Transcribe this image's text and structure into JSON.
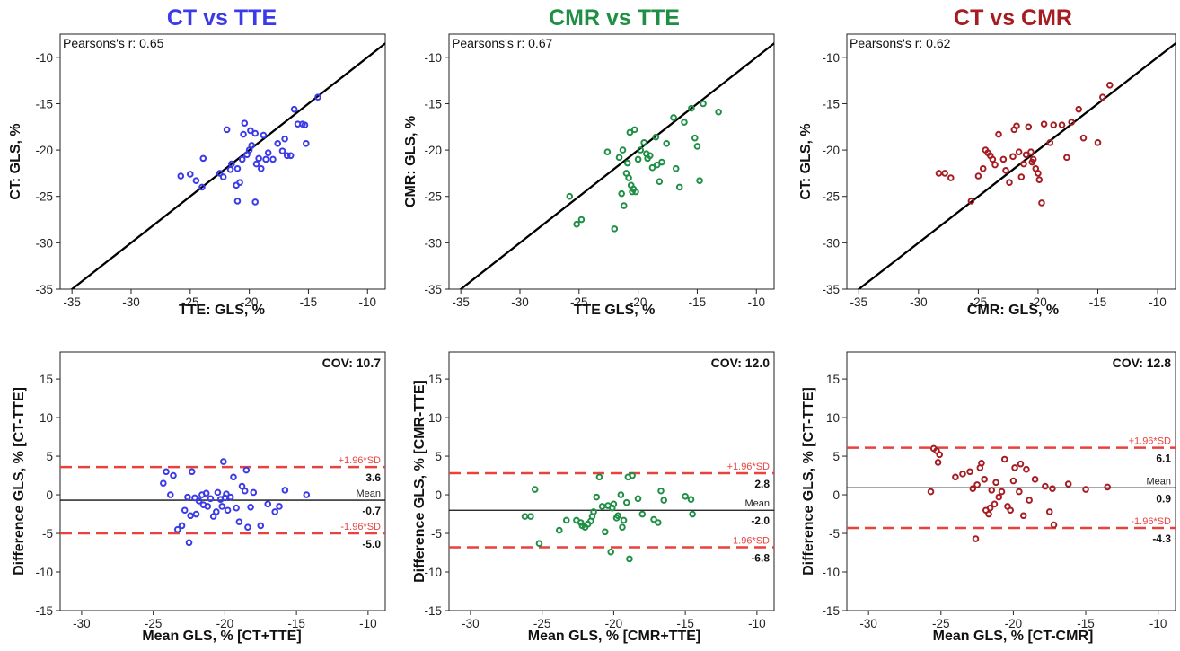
{
  "chart_data": [
    {
      "type": "scatter",
      "panel": "top-left",
      "title": "CT vs TTE",
      "title_color": "#3a3ae8",
      "xlabel": "TTE: GLS, %",
      "ylabel": "CT: GLS, %",
      "xlim": [
        -36,
        -8.5
      ],
      "ylim": [
        -35,
        -7.5
      ],
      "xticks": [
        -35,
        -30,
        -25,
        -20,
        -15,
        -10
      ],
      "yticks": [
        -35,
        -30,
        -25,
        -20,
        -15,
        -10
      ],
      "annotation": "Pearsons's r: 0.65",
      "identity_line": true,
      "marker_color": "#3a3ae8",
      "points": [
        [
          -25.8,
          -22.8
        ],
        [
          -25.0,
          -22.6
        ],
        [
          -24.5,
          -23.3
        ],
        [
          -24.0,
          -24.0
        ],
        [
          -23.9,
          -20.9
        ],
        [
          -22.5,
          -22.5
        ],
        [
          -22.2,
          -22.9
        ],
        [
          -21.9,
          -17.8
        ],
        [
          -21.6,
          -22.1
        ],
        [
          -21.5,
          -21.5
        ],
        [
          -21.1,
          -23.8
        ],
        [
          -21.0,
          -22.0
        ],
        [
          -21.0,
          -25.5
        ],
        [
          -20.8,
          -23.5
        ],
        [
          -20.6,
          -21.0
        ],
        [
          -20.5,
          -18.3
        ],
        [
          -20.4,
          -17.1
        ],
        [
          -20.2,
          -20.5
        ],
        [
          -20.0,
          -20.0
        ],
        [
          -19.9,
          -17.9
        ],
        [
          -19.8,
          -19.5
        ],
        [
          -19.5,
          -18.2
        ],
        [
          -19.5,
          -25.6
        ],
        [
          -19.4,
          -21.5
        ],
        [
          -19.2,
          -20.9
        ],
        [
          -19.0,
          -22.0
        ],
        [
          -18.8,
          -18.4
        ],
        [
          -18.6,
          -21.0
        ],
        [
          -18.4,
          -20.3
        ],
        [
          -18.0,
          -21.0
        ],
        [
          -17.6,
          -19.3
        ],
        [
          -17.2,
          -20.1
        ],
        [
          -17.0,
          -18.8
        ],
        [
          -16.8,
          -20.6
        ],
        [
          -16.5,
          -20.6
        ],
        [
          -16.2,
          -15.6
        ],
        [
          -15.9,
          -17.2
        ],
        [
          -15.5,
          -17.2
        ],
        [
          -15.3,
          -17.3
        ],
        [
          -15.2,
          -19.3
        ],
        [
          -14.2,
          -14.3
        ]
      ]
    },
    {
      "type": "scatter",
      "panel": "top-middle",
      "title": "CMR vs TTE",
      "title_color": "#1e8f45",
      "xlabel": "TTE GLS, %",
      "ylabel": "CMR: GLS, %",
      "xlim": [
        -36,
        -8.5
      ],
      "ylim": [
        -35,
        -7.5
      ],
      "xticks": [
        -35,
        -30,
        -25,
        -20,
        -15,
        -10
      ],
      "yticks": [
        -35,
        -30,
        -25,
        -20,
        -15,
        -10
      ],
      "annotation": "Pearsons's r: 0.67",
      "identity_line": true,
      "marker_color": "#1e8f45",
      "points": [
        [
          -25.8,
          -25.0
        ],
        [
          -25.2,
          -28.0
        ],
        [
          -24.8,
          -27.5
        ],
        [
          -22.6,
          -20.2
        ],
        [
          -22.0,
          -28.5
        ],
        [
          -21.6,
          -20.8
        ],
        [
          -21.4,
          -24.7
        ],
        [
          -21.3,
          -20.0
        ],
        [
          -21.2,
          -26.0
        ],
        [
          -21.0,
          -22.5
        ],
        [
          -20.9,
          -21.4
        ],
        [
          -20.8,
          -23.0
        ],
        [
          -20.7,
          -18.1
        ],
        [
          -20.6,
          -23.8
        ],
        [
          -20.5,
          -24.5
        ],
        [
          -20.4,
          -24.2
        ],
        [
          -20.3,
          -17.8
        ],
        [
          -20.2,
          -24.5
        ],
        [
          -20.0,
          -21.0
        ],
        [
          -19.8,
          -20.0
        ],
        [
          -19.5,
          -19.2
        ],
        [
          -19.3,
          -20.4
        ],
        [
          -19.2,
          -20.9
        ],
        [
          -19.0,
          -20.6
        ],
        [
          -18.8,
          -21.9
        ],
        [
          -18.5,
          -18.6
        ],
        [
          -18.4,
          -21.6
        ],
        [
          -18.2,
          -23.4
        ],
        [
          -18.0,
          -21.3
        ],
        [
          -17.6,
          -19.3
        ],
        [
          -17.0,
          -16.5
        ],
        [
          -16.8,
          -22.0
        ],
        [
          -16.5,
          -24.0
        ],
        [
          -16.1,
          -17.0
        ],
        [
          -15.5,
          -15.5
        ],
        [
          -15.2,
          -18.7
        ],
        [
          -15.0,
          -19.6
        ],
        [
          -14.8,
          -23.3
        ],
        [
          -14.5,
          -15.0
        ],
        [
          -13.2,
          -15.9
        ]
      ]
    },
    {
      "type": "scatter",
      "panel": "top-right",
      "title": "CT vs CMR",
      "title_color": "#a51d23",
      "xlabel": "CMR: GLS, %",
      "ylabel": "CT: GLS, %",
      "xlim": [
        -36,
        -8.5
      ],
      "ylim": [
        -35,
        -7.5
      ],
      "xticks": [
        -35,
        -30,
        -25,
        -20,
        -15,
        -10
      ],
      "yticks": [
        -35,
        -30,
        -25,
        -20,
        -15,
        -10
      ],
      "annotation": "Pearsons's r: 0.62",
      "identity_line": true,
      "marker_color": "#a51d23",
      "points": [
        [
          -28.3,
          -22.5
        ],
        [
          -27.8,
          -22.5
        ],
        [
          -27.3,
          -23.0
        ],
        [
          -25.6,
          -25.5
        ],
        [
          -25.0,
          -22.8
        ],
        [
          -24.6,
          -22.0
        ],
        [
          -24.4,
          -20.0
        ],
        [
          -24.2,
          -20.3
        ],
        [
          -24.0,
          -20.6
        ],
        [
          -23.8,
          -21.0
        ],
        [
          -23.6,
          -21.6
        ],
        [
          -23.3,
          -18.3
        ],
        [
          -22.9,
          -21.0
        ],
        [
          -22.7,
          -22.2
        ],
        [
          -22.4,
          -23.5
        ],
        [
          -22.1,
          -20.7
        ],
        [
          -22.0,
          -17.8
        ],
        [
          -21.8,
          -17.4
        ],
        [
          -21.6,
          -20.2
        ],
        [
          -21.4,
          -22.9
        ],
        [
          -21.2,
          -21.5
        ],
        [
          -21.0,
          -20.5
        ],
        [
          -20.8,
          -17.5
        ],
        [
          -20.6,
          -20.2
        ],
        [
          -20.5,
          -21.3
        ],
        [
          -20.4,
          -21.0
        ],
        [
          -20.2,
          -22.0
        ],
        [
          -20.0,
          -22.5
        ],
        [
          -19.9,
          -23.2
        ],
        [
          -19.7,
          -25.7
        ],
        [
          -19.5,
          -17.2
        ],
        [
          -19.0,
          -19.2
        ],
        [
          -18.7,
          -17.3
        ],
        [
          -18.0,
          -17.3
        ],
        [
          -17.6,
          -20.8
        ],
        [
          -17.2,
          -17.0
        ],
        [
          -16.6,
          -15.6
        ],
        [
          -16.2,
          -18.7
        ],
        [
          -15.0,
          -19.2
        ],
        [
          -14.6,
          -14.3
        ],
        [
          -14.0,
          -13.0
        ]
      ]
    },
    {
      "type": "scatter",
      "panel": "bottom-left",
      "xlabel": "Mean GLS, % [CT+TTE]",
      "ylabel": "Difference GLS, % [CT-TTE]",
      "xlim": [
        -31.5,
        -8.8
      ],
      "ylim": [
        -15,
        18.5
      ],
      "xticks": [
        -30,
        -25,
        -20,
        -15,
        -10
      ],
      "yticks": [
        -15,
        -10,
        -5,
        0,
        5,
        10,
        15
      ],
      "cov_label": "COV: 10.7",
      "mean": -0.7,
      "upper_loa": 3.6,
      "lower_loa": -5.0,
      "mean_label": "Mean",
      "upper_label": "+1.96*SD",
      "lower_label": "-1.96*SD",
      "mean_text": "-0.7",
      "upper_text": "3.6",
      "lower_text": "-5.0",
      "marker_color": "#3a3ae8",
      "points": [
        [
          -24.1,
          3.0
        ],
        [
          -23.6,
          2.5
        ],
        [
          -23.8,
          0.0
        ],
        [
          -23.3,
          -4.5
        ],
        [
          -23.0,
          -4.0
        ],
        [
          -22.6,
          -0.3
        ],
        [
          -22.5,
          -6.2
        ],
        [
          -22.4,
          -2.7
        ],
        [
          -22.3,
          3.0
        ],
        [
          -22.1,
          -0.4
        ],
        [
          -22.0,
          -2.5
        ],
        [
          -21.8,
          -0.8
        ],
        [
          -21.5,
          -1.3
        ],
        [
          -21.3,
          0.2
        ],
        [
          -21.2,
          -1.5
        ],
        [
          -21.0,
          -0.5
        ],
        [
          -20.8,
          -2.8
        ],
        [
          -20.6,
          -2.2
        ],
        [
          -20.5,
          0.3
        ],
        [
          -20.3,
          -0.6
        ],
        [
          -20.2,
          -1.5
        ],
        [
          -20.1,
          4.3
        ],
        [
          -20.0,
          -0.4
        ],
        [
          -19.8,
          -2.0
        ],
        [
          -19.6,
          -0.3
        ],
        [
          -19.4,
          2.3
        ],
        [
          -19.2,
          -1.7
        ],
        [
          -19.0,
          -3.5
        ],
        [
          -18.8,
          1.1
        ],
        [
          -18.6,
          0.5
        ],
        [
          -18.5,
          3.2
        ],
        [
          -18.4,
          -4.2
        ],
        [
          -18.2,
          -1.6
        ],
        [
          -18.0,
          0.3
        ],
        [
          -17.5,
          -4.0
        ],
        [
          -17.0,
          -1.2
        ],
        [
          -16.5,
          -2.2
        ],
        [
          -16.2,
          -1.5
        ],
        [
          -15.8,
          0.6
        ],
        [
          -14.3,
          0.0
        ],
        [
          -24.3,
          1.5
        ],
        [
          -19.9,
          0.1
        ],
        [
          -21.6,
          0.0
        ],
        [
          -22.8,
          -2.0
        ]
      ]
    },
    {
      "type": "scatter",
      "panel": "bottom-middle",
      "xlabel": "Mean GLS, % [CMR+TTE]",
      "ylabel": "Difference GLS, % [CMR-TTE]",
      "xlim": [
        -31.5,
        -8.8
      ],
      "ylim": [
        -15,
        18.5
      ],
      "xticks": [
        -30,
        -25,
        -20,
        -15,
        -10
      ],
      "yticks": [
        -15,
        -10,
        -5,
        0,
        5,
        10,
        15
      ],
      "cov_label": "COV: 12.0",
      "mean": -2.0,
      "upper_loa": 2.8,
      "lower_loa": -6.8,
      "mean_label": "Mean",
      "upper_label": "+1.96*SD",
      "lower_label": "-1.96*SD",
      "mean_text": "-2.0",
      "upper_text": "2.8",
      "lower_text": "-6.8",
      "marker_color": "#1e8f45",
      "points": [
        [
          -26.2,
          -2.8
        ],
        [
          -25.8,
          -2.8
        ],
        [
          -25.5,
          0.7
        ],
        [
          -25.2,
          -6.3
        ],
        [
          -23.8,
          -4.6
        ],
        [
          -23.3,
          -3.3
        ],
        [
          -22.6,
          -3.3
        ],
        [
          -22.3,
          -3.6
        ],
        [
          -22.2,
          -4.0
        ],
        [
          -22.0,
          -4.2
        ],
        [
          -21.8,
          -3.8
        ],
        [
          -21.6,
          -3.4
        ],
        [
          -21.5,
          -2.8
        ],
        [
          -21.4,
          -2.2
        ],
        [
          -21.2,
          -0.3
        ],
        [
          -21.0,
          2.3
        ],
        [
          -20.8,
          -1.5
        ],
        [
          -20.6,
          -4.8
        ],
        [
          -20.4,
          -1.4
        ],
        [
          -20.2,
          -7.4
        ],
        [
          -20.1,
          -1.7
        ],
        [
          -20.0,
          -1.2
        ],
        [
          -19.8,
          -3.0
        ],
        [
          -19.7,
          -2.7
        ],
        [
          -19.5,
          0.0
        ],
        [
          -19.4,
          -4.2
        ],
        [
          -19.3,
          -3.3
        ],
        [
          -19.1,
          -1.0
        ],
        [
          -19.0,
          2.3
        ],
        [
          -18.9,
          -8.3
        ],
        [
          -18.7,
          2.5
        ],
        [
          -18.3,
          -0.5
        ],
        [
          -18.0,
          -2.5
        ],
        [
          -17.2,
          -3.2
        ],
        [
          -16.9,
          -3.6
        ],
        [
          -16.7,
          0.5
        ],
        [
          -16.5,
          -0.7
        ],
        [
          -15.0,
          -0.2
        ],
        [
          -14.6,
          -0.6
        ],
        [
          -14.5,
          -2.5
        ]
      ]
    },
    {
      "type": "scatter",
      "panel": "bottom-right",
      "xlabel": "Mean GLS, % [CT-CMR]",
      "ylabel": "Difference GLS, % [CT-TTE]",
      "xlim": [
        -31.5,
        -8.8
      ],
      "ylim": [
        -15,
        18.5
      ],
      "xticks": [
        -30,
        -25,
        -20,
        -15,
        -10
      ],
      "yticks": [
        -15,
        -10,
        -5,
        0,
        5,
        10,
        15
      ],
      "cov_label": "COV: 12.8",
      "mean": 0.9,
      "upper_loa": 6.1,
      "lower_loa": -4.3,
      "mean_label": "Mean",
      "upper_label": "+1.96*SD",
      "lower_label": "-1.96*SD",
      "mean_text": "0.9",
      "upper_text": "6.1",
      "lower_text": "-4.3",
      "marker_color": "#a51d23",
      "points": [
        [
          -25.7,
          0.4
        ],
        [
          -25.5,
          6.0
        ],
        [
          -25.3,
          5.7
        ],
        [
          -25.1,
          5.2
        ],
        [
          -25.2,
          4.2
        ],
        [
          -24.0,
          2.3
        ],
        [
          -23.5,
          2.7
        ],
        [
          -23.0,
          3.0
        ],
        [
          -22.8,
          0.8
        ],
        [
          -22.6,
          -5.7
        ],
        [
          -22.5,
          1.3
        ],
        [
          -22.3,
          3.5
        ],
        [
          -22.2,
          4.1
        ],
        [
          -22.0,
          2.0
        ],
        [
          -21.9,
          -2.0
        ],
        [
          -21.7,
          -2.5
        ],
        [
          -21.6,
          -1.7
        ],
        [
          -21.5,
          0.6
        ],
        [
          -21.3,
          -1.2
        ],
        [
          -21.2,
          1.6
        ],
        [
          -21.0,
          -0.3
        ],
        [
          -20.8,
          0.4
        ],
        [
          -20.6,
          4.6
        ],
        [
          -20.4,
          -1.5
        ],
        [
          -20.2,
          -2.0
        ],
        [
          -20.0,
          1.8
        ],
        [
          -19.9,
          3.5
        ],
        [
          -19.6,
          0.4
        ],
        [
          -19.5,
          4.0
        ],
        [
          -19.3,
          -2.7
        ],
        [
          -19.1,
          3.3
        ],
        [
          -18.9,
          -0.7
        ],
        [
          -18.5,
          2.0
        ],
        [
          -17.8,
          1.1
        ],
        [
          -17.5,
          -2.2
        ],
        [
          -17.3,
          0.8
        ],
        [
          -17.2,
          -3.9
        ],
        [
          -16.2,
          1.4
        ],
        [
          -15.0,
          0.7
        ],
        [
          -13.5,
          1.0
        ]
      ]
    }
  ]
}
